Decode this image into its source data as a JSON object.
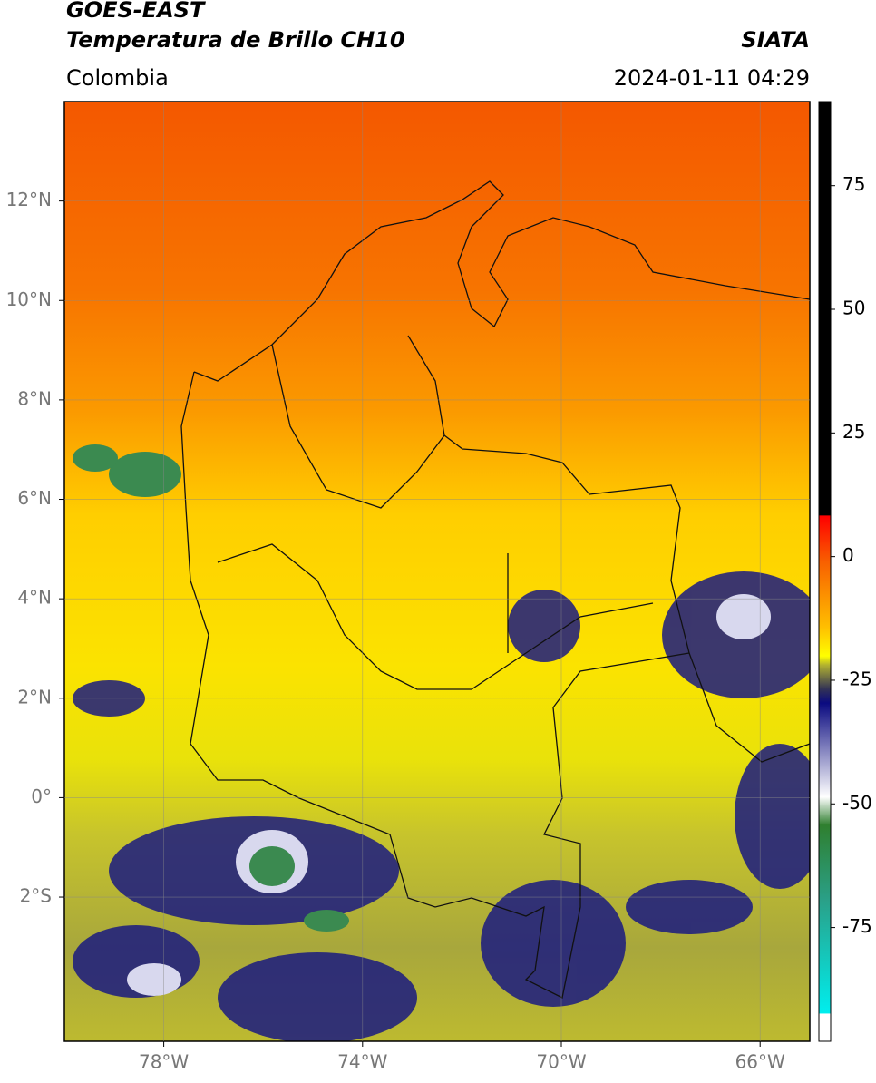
{
  "header": {
    "title_line1": "GOES-EAST",
    "title_line2": "Temperatura de Brillo CH10",
    "region": "Colombia",
    "source": "SIATA",
    "datetime": "2024-01-11 04:29"
  },
  "map": {
    "xlim": [
      -80,
      -65
    ],
    "ylim": [
      -4.9,
      14
    ],
    "xticks": [
      {
        "value": -78,
        "label": "78°W"
      },
      {
        "value": -74,
        "label": "74°W"
      },
      {
        "value": -70,
        "label": "70°W"
      },
      {
        "value": -66,
        "label": "66°W"
      }
    ],
    "yticks": [
      {
        "value": -2,
        "label": "2°S"
      },
      {
        "value": 0,
        "label": "0°"
      },
      {
        "value": 2,
        "label": "2°N"
      },
      {
        "value": 4,
        "label": "4°N"
      },
      {
        "value": 6,
        "label": "6°N"
      },
      {
        "value": 8,
        "label": "8°N"
      },
      {
        "value": 10,
        "label": "10°N"
      },
      {
        "value": 12,
        "label": "12°N"
      }
    ],
    "grid": true
  },
  "colorbar": {
    "lim": [
      -98,
      92
    ],
    "ticks": [
      75,
      50,
      25,
      0,
      -25,
      -50,
      -75
    ]
  }
}
